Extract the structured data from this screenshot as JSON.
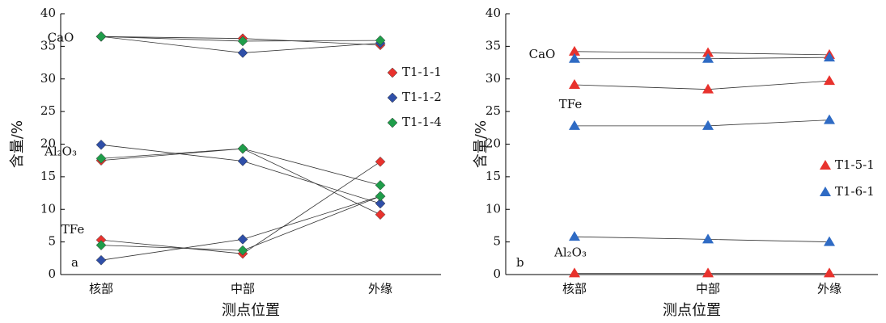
{
  "chart_data": [
    {
      "type": "line",
      "panel_label": "a",
      "categories": [
        "核部",
        "中部",
        "外缘"
      ],
      "x_label": "测点位置",
      "y_label": "含量/%",
      "ylim": [
        0,
        40
      ],
      "yticks": [
        0,
        5,
        10,
        15,
        20,
        25,
        30,
        35,
        40
      ],
      "groups": [
        "CaO",
        "Al₂O₃",
        "TFe"
      ],
      "series": [
        {
          "name": "T1-1-1",
          "color": "#e8322d",
          "marker": "diamond",
          "lines": [
            [
              36.5,
              36.2,
              35.2
            ],
            [
              17.5,
              19.3,
              9.2
            ],
            [
              5.3,
              3.2,
              17.3
            ]
          ]
        },
        {
          "name": "T1-1-2",
          "color": "#2f4fa8",
          "marker": "diamond",
          "lines": [
            [
              36.5,
              34.0,
              35.5
            ],
            [
              19.9,
              17.4,
              10.9
            ],
            [
              2.2,
              5.4,
              12.0
            ]
          ]
        },
        {
          "name": "T1-1-4",
          "color": "#1f9d4a",
          "marker": "diamond",
          "lines": [
            [
              36.5,
              35.8,
              35.9
            ],
            [
              17.8,
              19.3,
              13.7
            ],
            [
              4.5,
              3.7,
              12.0
            ]
          ]
        }
      ]
    },
    {
      "type": "line",
      "panel_label": "b",
      "categories": [
        "核部",
        "中部",
        "外缘"
      ],
      "x_label": "测点位置",
      "y_label": "含量/%",
      "ylim": [
        0,
        40
      ],
      "yticks": [
        0,
        5,
        10,
        15,
        20,
        25,
        30,
        35,
        40
      ],
      "groups": [
        "CaO",
        "TFe",
        "Al₂O₃"
      ],
      "series": [
        {
          "name": "T1-5-1",
          "color": "#e8322d",
          "marker": "triangle",
          "lines": [
            [
              34.2,
              34.0,
              33.7
            ],
            [
              29.1,
              28.4,
              29.7
            ],
            [
              0.2,
              0.2,
              0.2
            ]
          ]
        },
        {
          "name": "T1-6-1",
          "color": "#2f6bc4",
          "marker": "triangle",
          "lines": [
            [
              33.1,
              33.1,
              33.3
            ],
            [
              22.8,
              22.8,
              23.7
            ],
            [
              5.8,
              5.4,
              5.0
            ]
          ]
        }
      ]
    }
  ]
}
